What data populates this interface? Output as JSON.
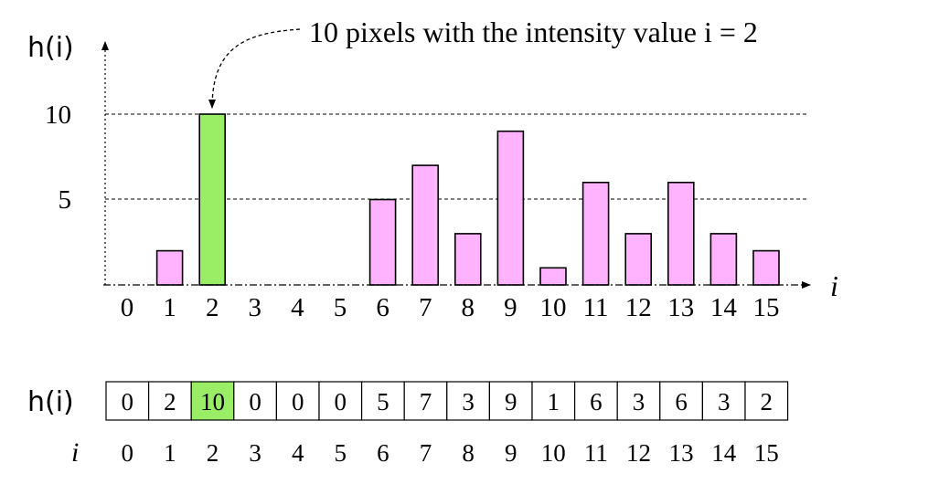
{
  "chart_data": {
    "type": "bar",
    "categories": [
      "0",
      "1",
      "2",
      "3",
      "4",
      "5",
      "6",
      "7",
      "8",
      "9",
      "10",
      "11",
      "12",
      "13",
      "14",
      "15"
    ],
    "values": [
      0,
      2,
      10,
      0,
      0,
      0,
      5,
      7,
      3,
      9,
      1,
      6,
      3,
      6,
      3,
      2
    ],
    "highlight_index": 2,
    "ylabel": "h(i)",
    "xlabel": "i",
    "yticks": [
      "5",
      "10"
    ],
    "ylim": [
      0,
      11
    ],
    "grid": "dashed at y ticks",
    "annotation": "10 pixels with the intensity value i = 2",
    "table": {
      "row_label": "h(i)",
      "index_label": "i",
      "values": [
        "0",
        "2",
        "10",
        "0",
        "0",
        "0",
        "5",
        "7",
        "3",
        "9",
        "1",
        "6",
        "3",
        "6",
        "3",
        "2"
      ],
      "indices": [
        "0",
        "1",
        "2",
        "3",
        "4",
        "5",
        "6",
        "7",
        "8",
        "9",
        "10",
        "11",
        "12",
        "13",
        "14",
        "15"
      ]
    }
  },
  "colors": {
    "bar": "#ffb3ff",
    "highlight": "#99ee66",
    "stroke": "#000000",
    "grid": "#000000"
  }
}
